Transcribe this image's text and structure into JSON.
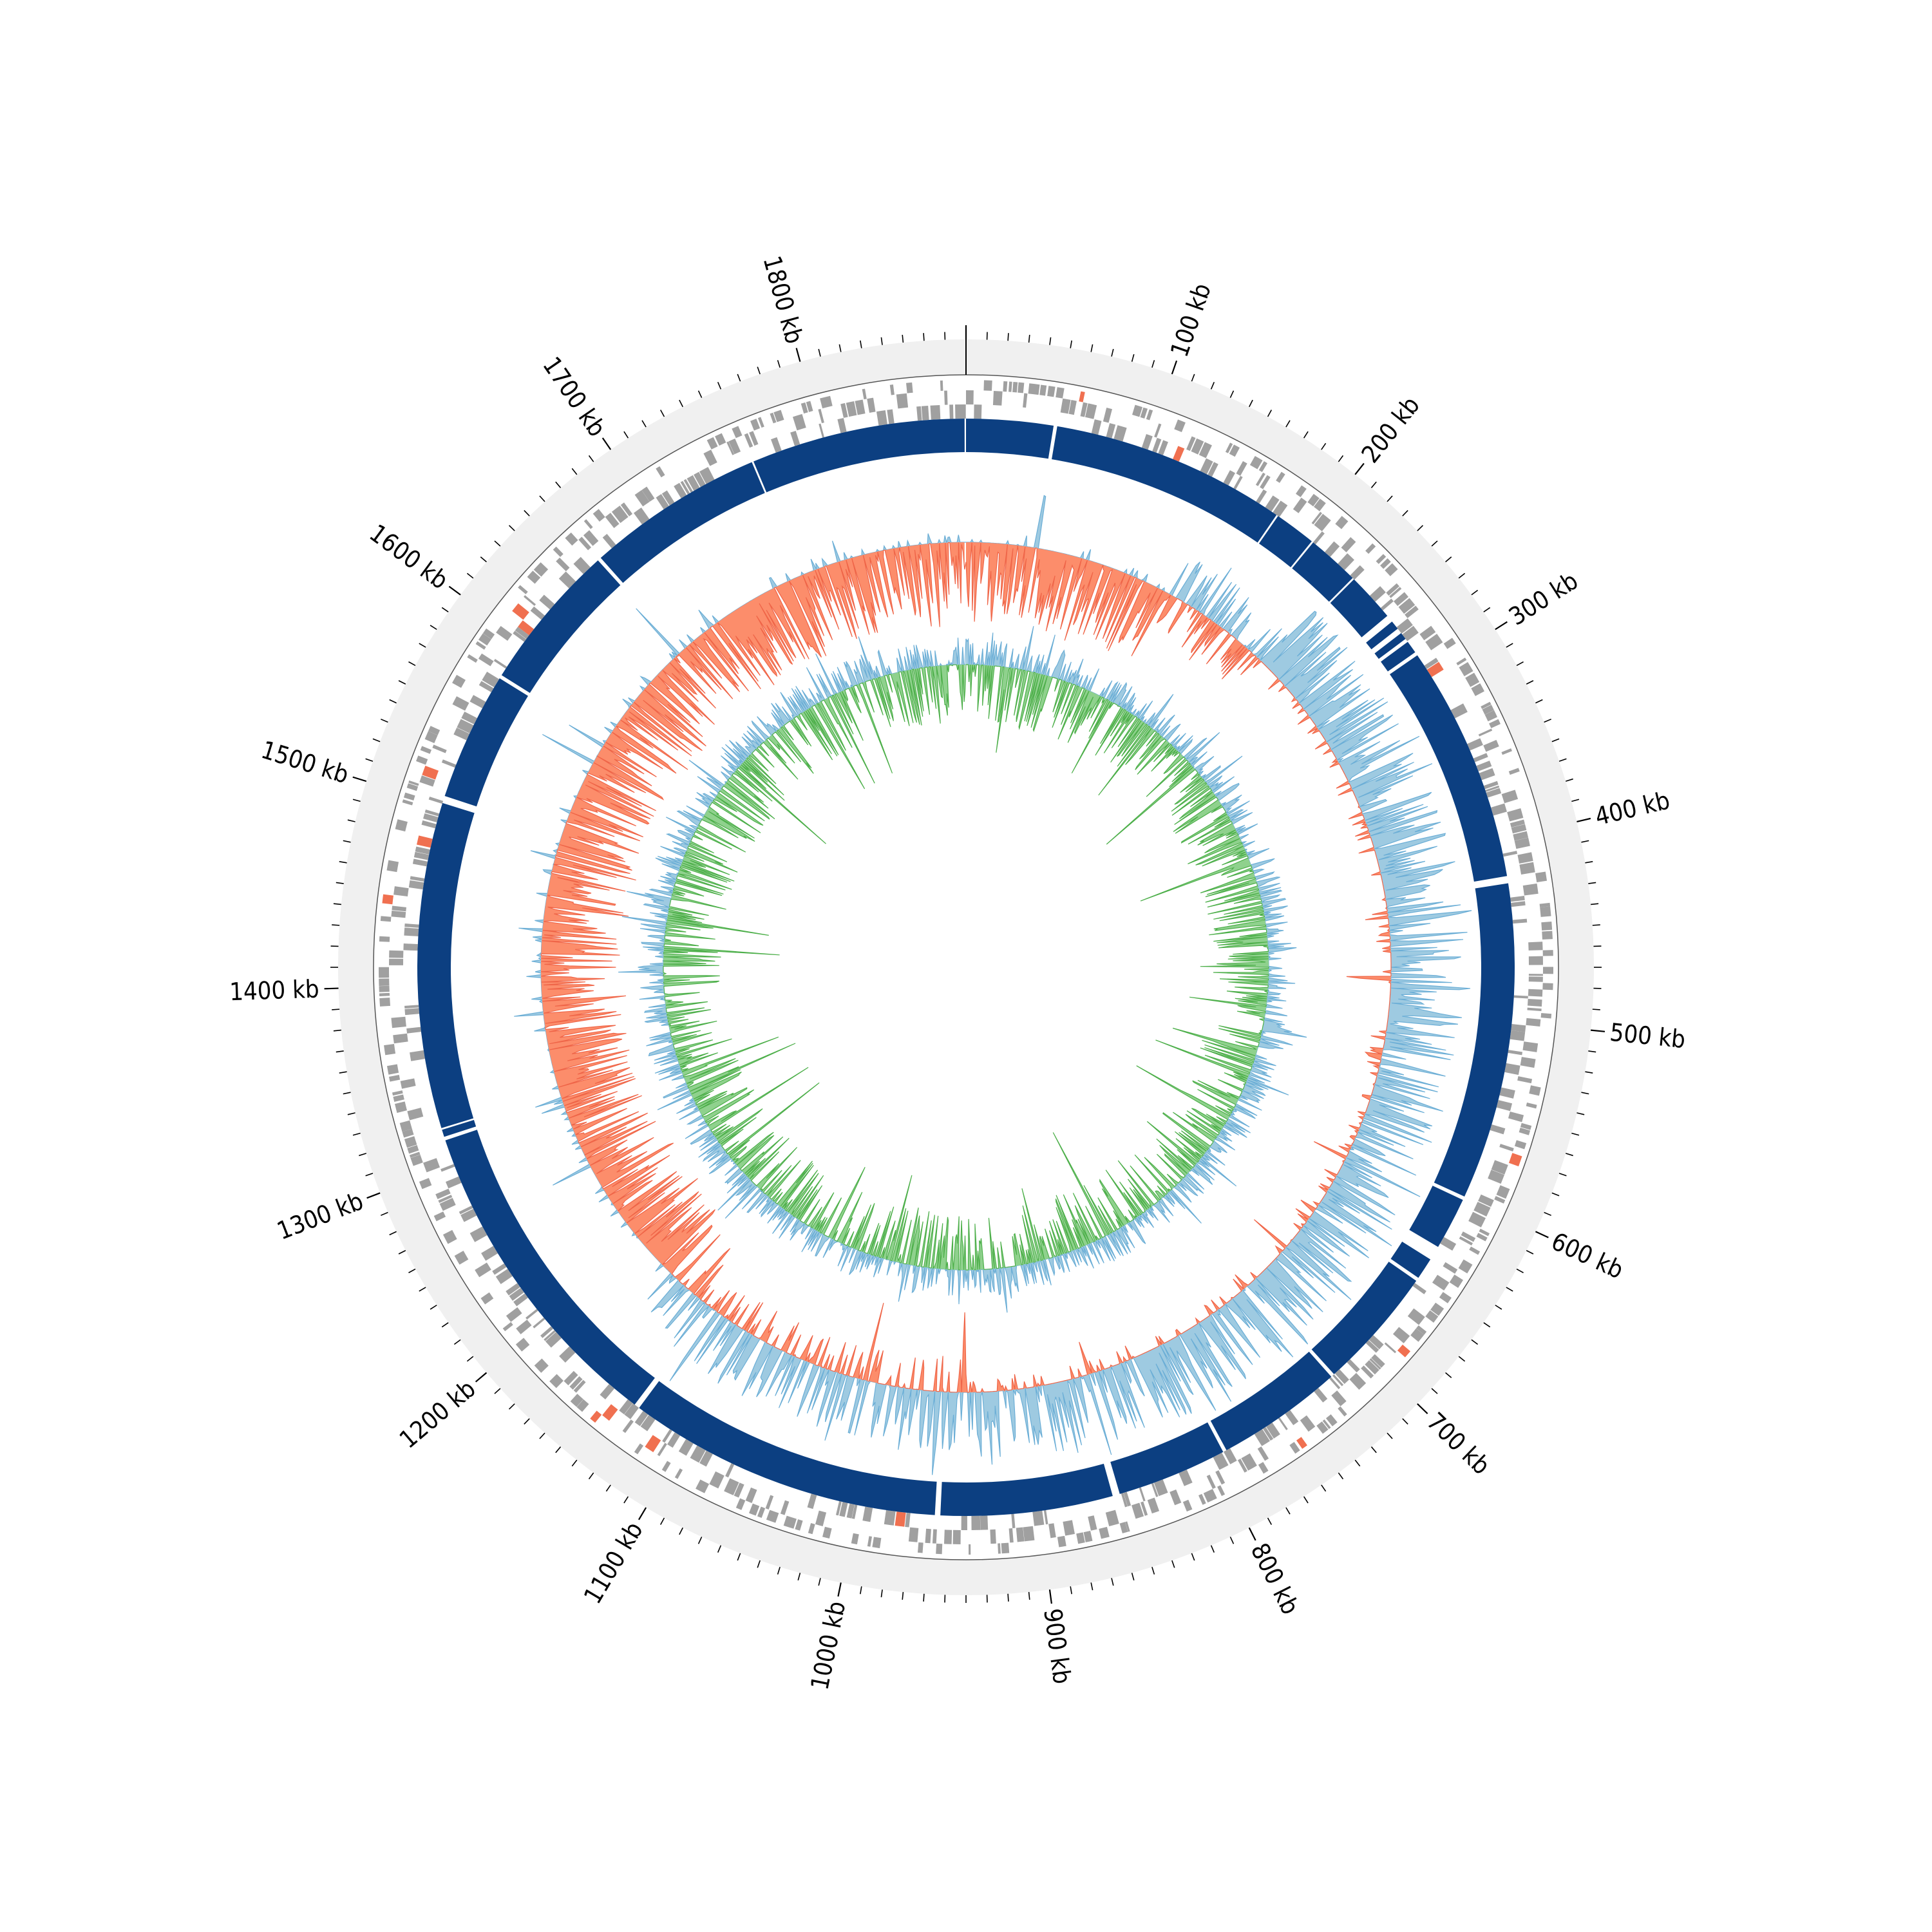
{
  "chart_data": {
    "type": "circular-genome",
    "genome_length_kb": 1880,
    "tick_labels": [
      "100 kb",
      "200 kb",
      "300 kb",
      "400 kb",
      "500 kb",
      "600 kb",
      "700 kb",
      "800 kb",
      "900 kb",
      "1000 kb",
      "1100 kb",
      "1200 kb",
      "1300 kb",
      "1400 kb",
      "1500 kb",
      "1600 kb",
      "1700 kb",
      "1800 kb"
    ],
    "tick_positions_kb": [
      100,
      200,
      300,
      400,
      500,
      600,
      700,
      800,
      900,
      1000,
      1100,
      1200,
      1300,
      1400,
      1500,
      1600,
      1700,
      1800
    ],
    "minor_tick_step_kb": 10,
    "tracks": [
      {
        "name": "ruler ring",
        "color": "#f0f0f0"
      },
      {
        "name": "CDS features",
        "color": "#a0a0a0",
        "highlight_color": "#f07050"
      },
      {
        "name": "contigs",
        "color": "#0c3f81"
      },
      {
        "name": "GC content",
        "positive_color": "#9ecae1",
        "negative_color": "#fc8d6b",
        "line_color_pos": "#6baed6",
        "line_color_neg": "#ef6548"
      },
      {
        "name": "GC skew",
        "positive_color": "#9ecae1",
        "negative_color": "#8fd18d",
        "line_color_pos": "#6baed6",
        "line_color_neg": "#4daf4a"
      }
    ],
    "contig_breaks_kb": [
      [
        48,
        50
      ],
      [
        180,
        181
      ],
      [
        204,
        205
      ],
      [
        234,
        235
      ],
      [
        262,
        266
      ],
      [
        271,
        274
      ],
      [
        278,
        280
      ],
      [
        287,
        289
      ],
      [
        420,
        424
      ],
      [
        599,
        601
      ],
      [
        630,
        638
      ],
      [
        650,
        652
      ],
      [
        720,
        722
      ],
      [
        792,
        794
      ],
      [
        855,
        859
      ],
      [
        954,
        957
      ],
      [
        1131,
        1134
      ],
      [
        1314,
        1316
      ],
      [
        1320,
        1321
      ],
      [
        1501,
        1505
      ],
      [
        1576,
        1578
      ],
      [
        1660,
        1662
      ],
      [
        1760,
        1761
      ]
    ],
    "colors": {
      "ruler_ring": "#f0f0f0",
      "features": "#a0a0a0",
      "contigs": "#0c3f81",
      "gc_positive": "#9ecae1",
      "gc_negative": "#fc8d6b",
      "skew_positive": "#9ecae1",
      "skew_negative": "#8fd18d"
    }
  }
}
